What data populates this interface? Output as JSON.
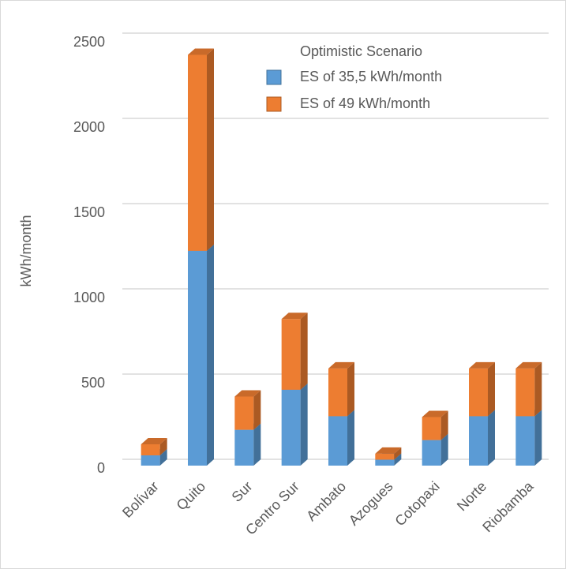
{
  "chart_data": {
    "type": "bar3d_stacked",
    "y_label": "kWh/month",
    "legend_title": "Optimistic Scenario",
    "categories": [
      "Bolívar",
      "Quito",
      "Sur",
      "Centro Sur",
      "Ambato",
      "Azogues",
      "Cotopaxi",
      "Norte",
      "Riobamba"
    ],
    "series": [
      {
        "name": "ES of 35,5 kWh/month",
        "color": "#5b9bd5",
        "values": [
          60,
          1260,
          210,
          445,
          290,
          35,
          150,
          290,
          290
        ]
      },
      {
        "name": "ES of 49 kWh/month",
        "color": "#ed7d31",
        "values": [
          65,
          1150,
          195,
          415,
          280,
          35,
          135,
          280,
          280
        ]
      }
    ],
    "ylim": [
      0,
      2500
    ],
    "yticks": [
      0,
      500,
      1000,
      1500,
      2000,
      2500
    ],
    "grid": true
  }
}
